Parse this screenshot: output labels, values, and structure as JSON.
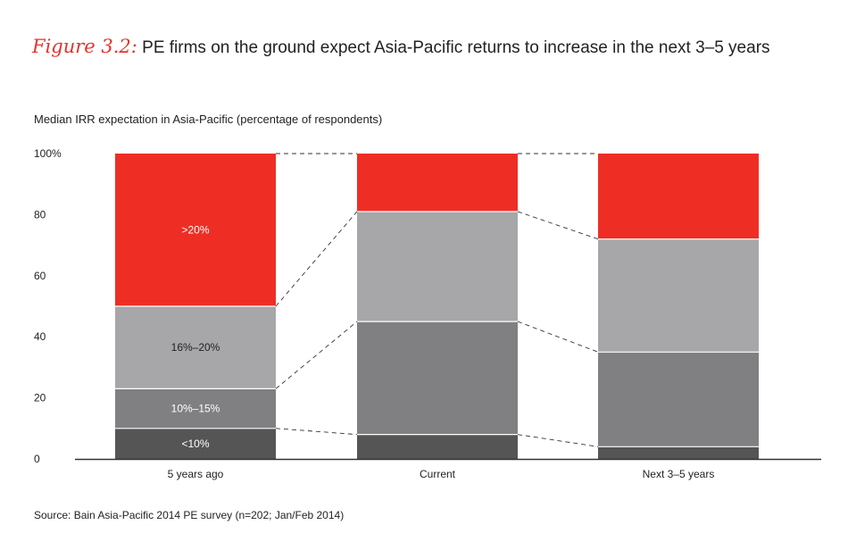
{
  "figure": {
    "label": "Figure 3.2:",
    "title": "PE firms on the ground expect Asia-Pacific returns to increase in the next 3–5 years"
  },
  "subtitle": "Median IRR expectation in Asia-Pacific (percentage of respondents)",
  "source": "Source: Bain Asia-Pacific 2014 PE survey (n=202; Jan/Feb 2014)",
  "chart_data": {
    "type": "bar",
    "stacked": true,
    "normalized": true,
    "ylabel": "Median IRR expectation in Asia-Pacific (percentage of respondents)",
    "ylim": [
      0,
      100
    ],
    "yticks": [
      "0",
      "20",
      "40",
      "60",
      "80",
      "100%"
    ],
    "categories": [
      "5 years ago",
      "Current",
      "Next 3–5 years"
    ],
    "series": [
      {
        "name": "<10%",
        "color": "#555555",
        "text_color": "#ffffff",
        "values": [
          10,
          8,
          4
        ],
        "label_on": 0
      },
      {
        "name": "10%–15%",
        "color": "#808082",
        "text_color": "#ffffff",
        "values": [
          13,
          37,
          31
        ],
        "label_on": 0
      },
      {
        "name": "16%–20%",
        "color": "#a7a7aa",
        "text_color": "#222222",
        "values": [
          27,
          36,
          37
        ],
        "label_on": 0
      },
      {
        "name": ">20%",
        "color": "#ee2e24",
        "text_color": "#ffffff",
        "values": [
          50,
          19,
          28
        ],
        "label_on": 0
      }
    ],
    "connectors": "dashed"
  }
}
